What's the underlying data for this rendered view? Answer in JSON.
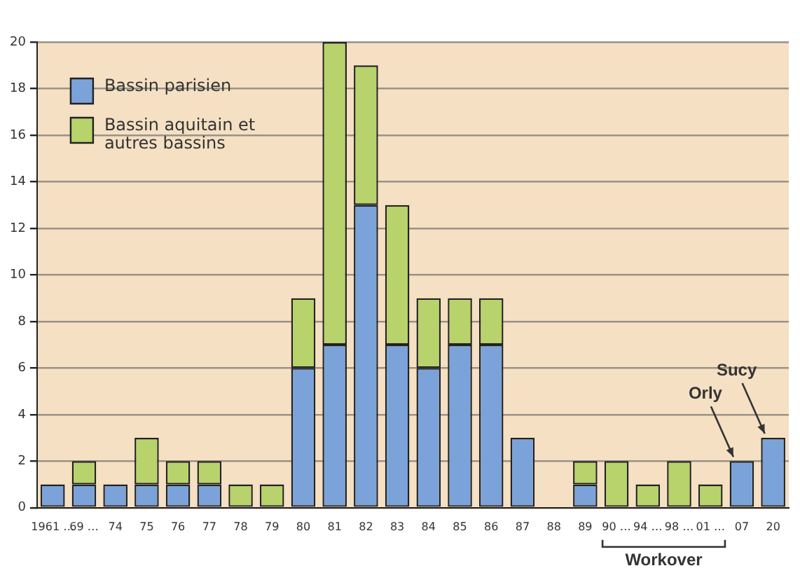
{
  "chart_data": {
    "type": "bar",
    "stacked": true,
    "categories": [
      "1961 …",
      "69 …",
      "74",
      "75",
      "76",
      "77",
      "78",
      "79",
      "80",
      "81",
      "82",
      "83",
      "84",
      "85",
      "86",
      "87",
      "88",
      "89",
      "90 …",
      "94 …",
      "98 …",
      "01 …",
      "07",
      "20"
    ],
    "series": [
      {
        "name": "Bassin parisien",
        "color": "#7ba3d9",
        "values": [
          1,
          1,
          1,
          1,
          1,
          1,
          0,
          0,
          6,
          7,
          13,
          7,
          6,
          7,
          7,
          3,
          0,
          1,
          0,
          0,
          0,
          0,
          2,
          3
        ]
      },
      {
        "name": "Bassin aquitain et autres bassins",
        "color": "#b8d26c",
        "values": [
          0,
          1,
          0,
          2,
          1,
          1,
          1,
          1,
          3,
          13,
          6,
          6,
          3,
          2,
          2,
          0,
          0,
          1,
          2,
          1,
          2,
          1,
          0,
          0
        ]
      }
    ],
    "ylim": [
      0,
      20
    ],
    "yticks": [
      0,
      2,
      4,
      6,
      8,
      10,
      12,
      14,
      16,
      18,
      20
    ],
    "grid": "y",
    "legend": "top left",
    "annotations": [
      {
        "text": "Orly",
        "x": "07",
        "y": 2
      },
      {
        "text": "Sucy",
        "x": "20",
        "y": 3
      },
      "Workover"
    ]
  }
}
